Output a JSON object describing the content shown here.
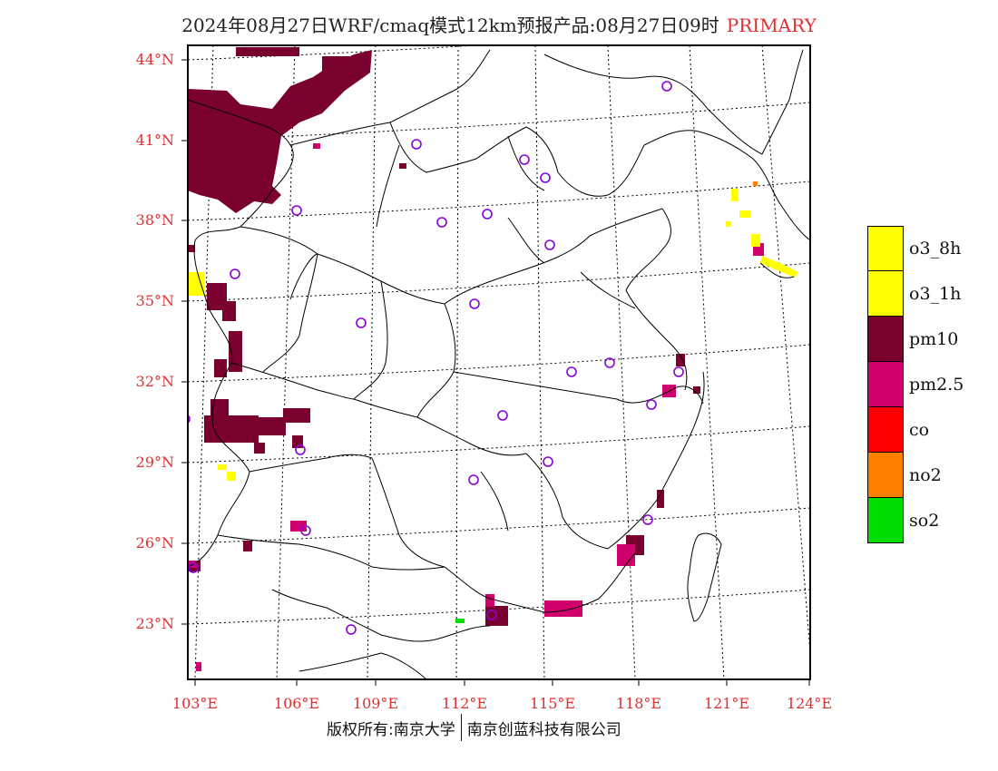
{
  "title": {
    "main": "2024年08月27日WRF/cmaq模式12km预报产品:08月27日09时",
    "tag": "PRIMARY"
  },
  "map": {
    "lat_labels": [
      "44°N",
      "41°N",
      "38°N",
      "35°N",
      "32°N",
      "29°N",
      "26°N",
      "23°N"
    ],
    "lon_labels": [
      "103°E",
      "106°E",
      "109°E",
      "112°E",
      "115°E",
      "118°E",
      "121°E",
      "124°E"
    ],
    "lat_values": [
      44,
      41,
      38,
      35,
      32,
      29,
      26,
      23
    ],
    "lon_values": [
      103,
      106,
      109,
      112,
      115,
      118,
      121,
      124
    ]
  },
  "legend": {
    "items": [
      {
        "label": "o3_8h",
        "color": "#ffff00"
      },
      {
        "label": "o3_1h",
        "color": "#ffff00"
      },
      {
        "label": "pm10",
        "color": "#7a0030"
      },
      {
        "label": "pm2.5",
        "color": "#d0006e"
      },
      {
        "label": "co",
        "color": "#ff0000"
      },
      {
        "label": "no2",
        "color": "#ff7f00"
      },
      {
        "label": "so2",
        "color": "#00dd00"
      }
    ]
  },
  "footer": {
    "left": "版权所有:南京大学",
    "right": "南京创蓝科技有限公司"
  }
}
